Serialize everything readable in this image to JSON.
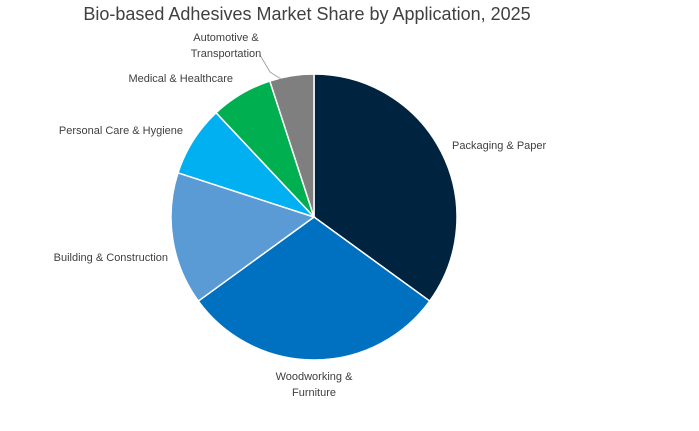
{
  "chart_data": {
    "type": "pie",
    "title": "Bio-based Adhesives Market Share by Application, 2025",
    "slices": [
      {
        "name": "Packaging & Paper",
        "value": 35,
        "color": "#002340"
      },
      {
        "name": "Woodworking & Furniture",
        "value": 30,
        "color": "#0070c0"
      },
      {
        "name": "Building & Construction",
        "value": 15,
        "color": "#5b9bd5"
      },
      {
        "name": "Personal Care & Hygiene",
        "value": 8,
        "color": "#00b0f0"
      },
      {
        "name": "Medical & Healthcare",
        "value": 7,
        "color": "#00b050"
      },
      {
        "name": "Automotive & Transportation",
        "value": 5,
        "color": "#7f7f7f"
      }
    ],
    "legend": "none",
    "data_labels": "category-name-outside"
  }
}
